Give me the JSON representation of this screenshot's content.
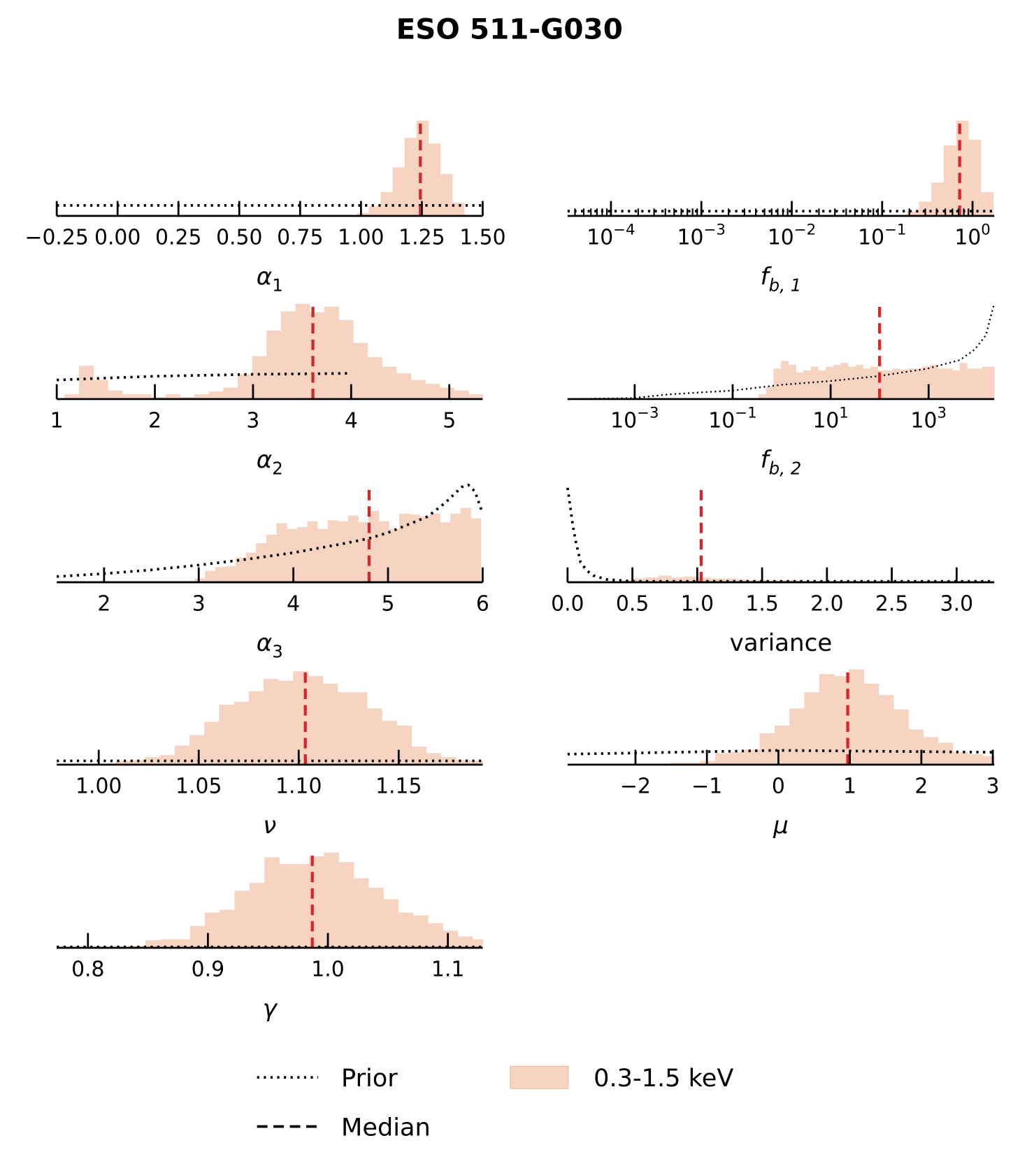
{
  "title": "ESO 511-G030",
  "colors": {
    "hist": "#f7d4c1",
    "hist_edge": "#f3b999",
    "median": "#d62728",
    "prior": "#000000"
  },
  "legend": {
    "prior_label": "Prior",
    "median_label": "Median",
    "hist_label": "0.3-1.5 keV"
  },
  "chart_data": [
    {
      "type": "bar",
      "xlabel": {
        "main": "α",
        "sub": "1",
        "italic": true
      },
      "scale": "linear",
      "xlim": [
        -0.25,
        1.5
      ],
      "ticks": [
        {
          "v": -0.25,
          "label": "−0.25"
        },
        {
          "v": 0,
          "label": "0.00"
        },
        {
          "v": 0.25,
          "label": "0.25"
        },
        {
          "v": 0.5,
          "label": "0.50"
        },
        {
          "v": 0.75,
          "label": "0.75"
        },
        {
          "v": 1.0,
          "label": "1.00"
        },
        {
          "v": 1.25,
          "label": "1.25"
        },
        {
          "v": 1.5,
          "label": "1.50"
        }
      ],
      "bins": {
        "start": 0.983,
        "width": 0.049,
        "heights": [
          0.03,
          0.1,
          0.25,
          0.51,
          0.82,
          1.0,
          0.76,
          0.44,
          0.14
        ]
      },
      "prior": [
        [
          -0.25,
          0.11
        ],
        [
          1.5,
          0.11
        ]
      ],
      "median": 1.244
    },
    {
      "type": "bar",
      "xlabel": {
        "main": "f",
        "sub": "b, 1",
        "italic": true
      },
      "scale": "log10",
      "xlim": [
        -4.48,
        0.24
      ],
      "minor_ticks": true,
      "ticks": [
        {
          "v": -4,
          "label": {
            "base": "10",
            "exp": "−4"
          }
        },
        {
          "v": -3,
          "label": {
            "base": "10",
            "exp": "−3"
          }
        },
        {
          "v": -2,
          "label": {
            "base": "10",
            "exp": "−2"
          }
        },
        {
          "v": -1,
          "label": {
            "base": "10",
            "exp": "−1"
          }
        },
        {
          "v": 0,
          "label": {
            "base": "10",
            "exp": "0"
          }
        }
      ],
      "bins": {
        "start": -0.73,
        "width": 0.137,
        "heights": [
          0.05,
          0.15,
          0.35,
          0.74,
          1.0,
          0.8,
          0.25
        ]
      },
      "prior": [
        [
          -4.48,
          0.05
        ],
        [
          0.24,
          0.05
        ]
      ],
      "median": 0.72
    },
    {
      "type": "bar",
      "xlabel": {
        "main": "α",
        "sub": "2",
        "italic": true
      },
      "scale": "linear",
      "xlim": [
        1,
        5.34
      ],
      "ticks": [
        {
          "v": 1,
          "label": "1"
        },
        {
          "v": 2,
          "label": "2"
        },
        {
          "v": 3,
          "label": "3"
        },
        {
          "v": 4,
          "label": "4"
        },
        {
          "v": 5,
          "label": "5"
        }
      ],
      "bins": {
        "start": 1.08,
        "width": 0.147,
        "heights": [
          0.05,
          0.35,
          0.2,
          0.09,
          0.05,
          0.05,
          0.02,
          0.05,
          0.02,
          0.05,
          0.08,
          0.12,
          0.26,
          0.45,
          0.72,
          0.92,
          1.0,
          0.91,
          0.97,
          0.83,
          0.59,
          0.44,
          0.34,
          0.27,
          0.2,
          0.16,
          0.12,
          0.09,
          0.05
        ]
      },
      "prior": [
        [
          1,
          0.2
        ],
        [
          2,
          0.24
        ],
        [
          3,
          0.26
        ],
        [
          4,
          0.27
        ]
      ],
      "median": 3.61
    },
    {
      "type": "bar",
      "xlabel": {
        "main": "f",
        "sub": "b, 2",
        "italic": true
      },
      "scale": "log10",
      "xlim": [
        -4.37,
        4.34
      ],
      "minor_ticks": false,
      "ticks": [
        {
          "v": -3,
          "label": {
            "base": "10",
            "exp": "−3"
          }
        },
        {
          "v": -1,
          "label": {
            "base": "10",
            "exp": "−1"
          }
        },
        {
          "v": 1,
          "label": {
            "base": "10",
            "exp": "1"
          }
        },
        {
          "v": 3,
          "label": {
            "base": "10",
            "exp": "3"
          }
        }
      ],
      "bins": {
        "start": -0.47,
        "width": 0.152,
        "heights": [
          0.05,
          0.13,
          0.32,
          0.4,
          0.36,
          0.28,
          0.3,
          0.34,
          0.3,
          0.34,
          0.36,
          0.38,
          0.34,
          0.36,
          0.32,
          0.34,
          0.3,
          0.3,
          0.32,
          0.31,
          0.32,
          0.32,
          0.34,
          0.36,
          0.32,
          0.32,
          0.3,
          0.38,
          0.32,
          0.32,
          0.34,
          0.34
        ]
      },
      "prior": [
        [
          -4.37,
          0.0
        ],
        [
          -3.05,
          0.01
        ],
        [
          -2.29,
          0.05
        ],
        [
          -1,
          0.09
        ],
        [
          0,
          0.15
        ],
        [
          1,
          0.19
        ],
        [
          1.96,
          0.24
        ],
        [
          2.98,
          0.32
        ],
        [
          3.64,
          0.41
        ],
        [
          3.94,
          0.52
        ],
        [
          4.17,
          0.67
        ],
        [
          4.29,
          0.91
        ],
        [
          4.34,
          1.0
        ]
      ],
      "median": 100
    },
    {
      "type": "bar",
      "xlabel": {
        "main": "α",
        "sub": "3",
        "italic": true
      },
      "scale": "linear",
      "xlim": [
        1.5,
        6
      ],
      "ticks": [
        {
          "v": 2,
          "label": "2"
        },
        {
          "v": 3,
          "label": "3"
        },
        {
          "v": 4,
          "label": "4"
        },
        {
          "v": 5,
          "label": "5"
        },
        {
          "v": 6,
          "label": "6"
        }
      ],
      "bins": {
        "start": 2.958,
        "width": 0.108,
        "heights": [
          0.04,
          0.12,
          0.16,
          0.17,
          0.26,
          0.31,
          0.41,
          0.5,
          0.62,
          0.56,
          0.58,
          0.64,
          0.56,
          0.65,
          0.64,
          0.7,
          0.63,
          0.75,
          0.64,
          0.56,
          0.72,
          0.71,
          0.69,
          0.72,
          0.63,
          0.72,
          0.78,
          0.67
        ]
      },
      "prior": [
        [
          1.5,
          0.06
        ],
        [
          2,
          0.09
        ],
        [
          2.5,
          0.13
        ],
        [
          3,
          0.18
        ],
        [
          3.5,
          0.24
        ],
        [
          4,
          0.31
        ],
        [
          4.5,
          0.4
        ],
        [
          4.8,
          0.46
        ],
        [
          5,
          0.52
        ],
        [
          5.2,
          0.6
        ],
        [
          5.42,
          0.69
        ],
        [
          5.6,
          0.83
        ],
        [
          5.78,
          1.0
        ],
        [
          5.85,
          1.02
        ],
        [
          5.92,
          0.95
        ],
        [
          6,
          0.72
        ]
      ],
      "median": 4.8
    },
    {
      "type": "bar",
      "xlabel": {
        "main": "variance",
        "sub": "",
        "italic": false
      },
      "scale": "linear",
      "xlim": [
        0,
        3.29
      ],
      "ticks": [
        {
          "v": 0,
          "label": "0.0"
        },
        {
          "v": 0.5,
          "label": "0.5"
        },
        {
          "v": 1.0,
          "label": "1.0"
        },
        {
          "v": 1.5,
          "label": "1.5"
        },
        {
          "v": 2.0,
          "label": "2.0"
        },
        {
          "v": 2.5,
          "label": "2.5"
        },
        {
          "v": 3.0,
          "label": "3.0"
        }
      ],
      "bins": {
        "start": 0.4,
        "width": 0.1,
        "heights": [
          0.02,
          0.04,
          0.05,
          0.07,
          0.05,
          0.06,
          0.05,
          0.04,
          0.04,
          0.03,
          0.02,
          0.02,
          0.02,
          0.02,
          0.01,
          0.01,
          0.01,
          0.01,
          0.01,
          0.01,
          0.01,
          0.01,
          0.01,
          0.01,
          0.01,
          0.01,
          0.01,
          0.01,
          0.01
        ]
      },
      "prior": [
        [
          0,
          0.99
        ],
        [
          0.01,
          0.9
        ],
        [
          0.02,
          0.8
        ],
        [
          0.04,
          0.6
        ],
        [
          0.06,
          0.45
        ],
        [
          0.1,
          0.21
        ],
        [
          0.15,
          0.12
        ],
        [
          0.2,
          0.07
        ],
        [
          0.3,
          0.03
        ],
        [
          0.5,
          0.01
        ],
        [
          3.29,
          0.01
        ]
      ],
      "median": 1.03
    },
    {
      "type": "bar",
      "xlabel": {
        "main": "ν",
        "sub": "",
        "italic": true
      },
      "scale": "linear",
      "xlim": [
        0.979,
        1.192
      ],
      "ticks": [
        {
          "v": 1.0,
          "label": "1.00"
        },
        {
          "v": 1.05,
          "label": "1.05"
        },
        {
          "v": 1.1,
          "label": "1.10"
        },
        {
          "v": 1.15,
          "label": "1.15"
        }
      ],
      "bins": {
        "start": 1.0084,
        "width": 0.0074,
        "heights": [
          0.04,
          0.05,
          0.08,
          0.1,
          0.2,
          0.31,
          0.45,
          0.63,
          0.66,
          0.77,
          0.9,
          0.88,
          0.98,
          0.93,
          0.85,
          0.76,
          0.76,
          0.59,
          0.46,
          0.41,
          0.19,
          0.12,
          0.08,
          0.05,
          0.04
        ]
      },
      "prior": [
        [
          0.979,
          0.04
        ],
        [
          1.192,
          0.04
        ]
      ],
      "median": 1.1033
    },
    {
      "type": "bar",
      "xlabel": {
        "main": "μ",
        "sub": "",
        "italic": true
      },
      "scale": "linear",
      "xlim": [
        -2.95,
        3.02
      ],
      "ticks": [
        {
          "v": -2,
          "label": "−2"
        },
        {
          "v": -1,
          "label": "−1"
        },
        {
          "v": 0,
          "label": "0"
        },
        {
          "v": 1,
          "label": "1"
        },
        {
          "v": 2,
          "label": "2"
        },
        {
          "v": 3,
          "label": "3"
        }
      ],
      "bins": {
        "start": -1.51,
        "width": 0.208,
        "heights": [
          0.02,
          0.02,
          0.04,
          0.12,
          0.13,
          0.16,
          0.33,
          0.41,
          0.59,
          0.76,
          0.95,
          0.93,
          1.0,
          0.85,
          0.73,
          0.58,
          0.37,
          0.29,
          0.23,
          0.13,
          0.11,
          0.09
        ]
      },
      "prior": [
        [
          -2.95,
          0.11
        ],
        [
          0,
          0.15
        ],
        [
          3.02,
          0.13
        ]
      ],
      "median": 0.97
    },
    {
      "type": "bar",
      "xlabel": {
        "main": "γ",
        "sub": "",
        "italic": true
      },
      "scale": "linear",
      "xlim": [
        0.774,
        1.129
      ],
      "ticks": [
        {
          "v": 0.8,
          "label": "0.8"
        },
        {
          "v": 0.9,
          "label": "0.9"
        },
        {
          "v": 1.0,
          "label": "1.0"
        },
        {
          "v": 1.1,
          "label": "1.1"
        }
      ],
      "bins": {
        "start": 0.823,
        "width": 0.0124,
        "heights": [
          0.01,
          0.02,
          0.08,
          0.09,
          0.09,
          0.23,
          0.37,
          0.4,
          0.6,
          0.68,
          0.95,
          0.88,
          0.88,
          0.96,
          1.0,
          0.9,
          0.73,
          0.63,
          0.51,
          0.37,
          0.34,
          0.26,
          0.18,
          0.12,
          0.09
        ]
      },
      "prior": [
        [
          0.774,
          0.01
        ],
        [
          1.129,
          0.01
        ]
      ],
      "median": 0.987
    }
  ]
}
